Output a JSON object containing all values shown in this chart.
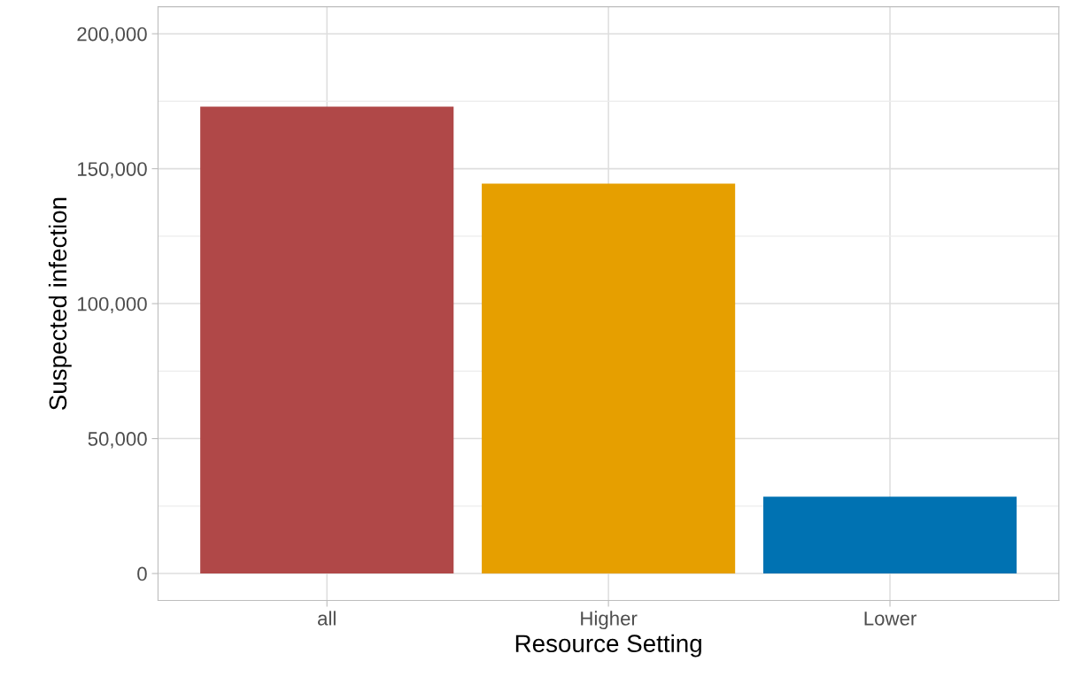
{
  "chart_data": {
    "type": "bar",
    "xlabel": "Resource Setting",
    "ylabel": "Suspected infection",
    "categories": [
      "all",
      "Higher",
      "Lower"
    ],
    "values": [
      173000,
      144500,
      28500
    ],
    "colors": [
      "#b04848",
      "#e69f00",
      "#0072b2"
    ],
    "ylim": [
      -10000,
      210000
    ],
    "yticks": [
      {
        "value": 0,
        "label": "0"
      },
      {
        "value": 50000,
        "label": "50,000"
      },
      {
        "value": 100000,
        "label": "100,000"
      },
      {
        "value": 150000,
        "label": "150,000"
      },
      {
        "value": 200000,
        "label": "200,000"
      }
    ],
    "grid": true,
    "legend": false
  }
}
